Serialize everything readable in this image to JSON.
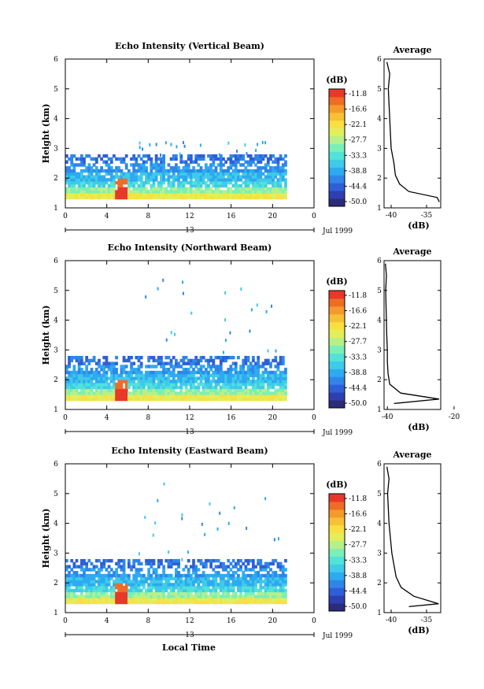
{
  "figure": {
    "xlabel": "Local Time",
    "date_label": "Jul 1999",
    "day_label": "13",
    "height_label": "Height (km)",
    "colorbar_unit": "(dB)",
    "average_title": "Average",
    "average_xlabel": "(dB)"
  },
  "colors": {
    "colormap": [
      "#2b2b7a",
      "#2e3fb0",
      "#2f5fd6",
      "#2f86e8",
      "#2eaaf0",
      "#3fcbe8",
      "#52e2d8",
      "#7af0b8",
      "#b6f08a",
      "#e2ee5a",
      "#f8e042",
      "#f8c034",
      "#f49a2c",
      "#ee6c26",
      "#e8382a"
    ],
    "line": "#000000"
  },
  "chart_data": [
    {
      "type": "heatmap",
      "title": "Echo Intensity (Vertical Beam)",
      "ylabel": "Height (km)",
      "xlim": [
        0,
        24
      ],
      "ylim": [
        1,
        6
      ],
      "xticks": [
        "0",
        "4",
        "8",
        "12",
        "16",
        "20",
        "0"
      ],
      "yticks": [
        "1",
        "2",
        "3",
        "4",
        "5",
        "6"
      ],
      "colorbar": {
        "unit": "(dB)",
        "ticks": [
          "-11.8",
          "-16.6",
          "-22.1",
          "-27.7",
          "-33.3",
          "-38.8",
          "-44.4",
          "-50.0"
        ]
      },
      "average_profile": {
        "title": "Average",
        "xlabel": "(dB)",
        "xticks": [
          "-40",
          "-35"
        ],
        "xlim": [
          -41,
          -33
        ],
        "points": [
          [
            -33.2,
            1.2
          ],
          [
            -33.5,
            1.35
          ],
          [
            -37.5,
            1.55
          ],
          [
            -38.8,
            1.8
          ],
          [
            -39.4,
            2.1
          ],
          [
            -39.6,
            2.5
          ],
          [
            -40.0,
            3.0
          ],
          [
            -40.1,
            3.5
          ],
          [
            -40.2,
            4.0
          ],
          [
            -40.3,
            4.5
          ],
          [
            -40.4,
            5.0
          ],
          [
            -40.2,
            5.5
          ],
          [
            -40.6,
            5.9
          ]
        ]
      }
    },
    {
      "type": "heatmap",
      "title": "Echo Intensity (Northward Beam)",
      "ylabel": "Height (km)",
      "xlim": [
        0,
        24
      ],
      "ylim": [
        1,
        6
      ],
      "xticks": [
        "0",
        "4",
        "8",
        "12",
        "16",
        "20",
        "0"
      ],
      "yticks": [
        "1",
        "2",
        "3",
        "4",
        "5",
        "6"
      ],
      "colorbar": {
        "unit": "(dB)",
        "ticks": [
          "-11.8",
          "-16.6",
          "-22.1",
          "-27.7",
          "-33.3",
          "-38.8",
          "-44.4",
          "-50.0"
        ]
      },
      "average_profile": {
        "title": "Average",
        "xlabel": "(dB)",
        "xticks": [
          "-40",
          "-20"
        ],
        "xlim": [
          -41,
          -24
        ],
        "points": [
          [
            -38.0,
            1.2
          ],
          [
            -24.5,
            1.35
          ],
          [
            -36.0,
            1.55
          ],
          [
            -39.3,
            1.85
          ],
          [
            -39.8,
            2.2
          ],
          [
            -40.0,
            2.6
          ],
          [
            -40.0,
            3.0
          ],
          [
            -40.2,
            3.5
          ],
          [
            -40.3,
            4.0
          ],
          [
            -40.4,
            4.5
          ],
          [
            -40.5,
            5.0
          ],
          [
            -40.3,
            5.5
          ],
          [
            -40.6,
            5.9
          ]
        ]
      }
    },
    {
      "type": "heatmap",
      "title": "Echo Intensity (Eastward Beam)",
      "ylabel": "Height (km)",
      "xlim": [
        0,
        24
      ],
      "ylim": [
        1,
        6
      ],
      "xticks": [
        "0",
        "4",
        "8",
        "12",
        "16",
        "20",
        "0"
      ],
      "yticks": [
        "1",
        "2",
        "3",
        "4",
        "5",
        "6"
      ],
      "colorbar": {
        "unit": "(dB)",
        "ticks": [
          "-11.8",
          "-16.6",
          "-22.1",
          "-27.7",
          "-33.3",
          "-38.8",
          "-44.4",
          "-50.0"
        ]
      },
      "average_profile": {
        "title": "Average",
        "xlabel": "(dB)",
        "xticks": [
          "-40",
          "-35"
        ],
        "xlim": [
          -41,
          -33
        ],
        "points": [
          [
            -37.5,
            1.2
          ],
          [
            -33.3,
            1.3
          ],
          [
            -36.8,
            1.55
          ],
          [
            -38.6,
            1.85
          ],
          [
            -39.3,
            2.2
          ],
          [
            -39.6,
            2.6
          ],
          [
            -39.9,
            3.0
          ],
          [
            -40.1,
            3.5
          ],
          [
            -40.3,
            4.0
          ],
          [
            -40.4,
            4.5
          ],
          [
            -40.5,
            5.0
          ],
          [
            -40.3,
            5.5
          ],
          [
            -40.6,
            5.9
          ]
        ]
      }
    }
  ]
}
